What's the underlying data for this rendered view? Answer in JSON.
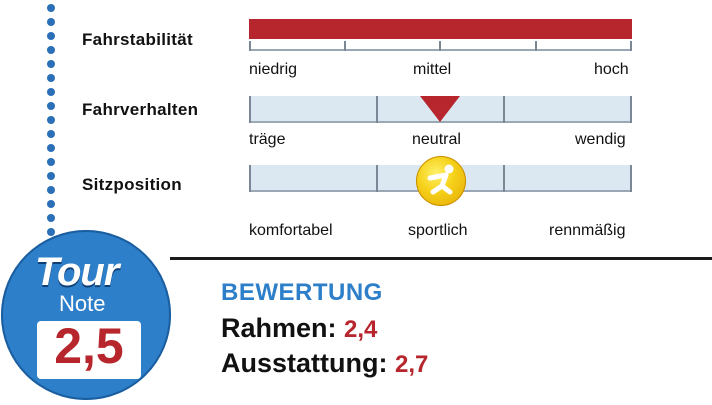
{
  "rows": [
    {
      "label": "Fahrstabilität",
      "scale_labels": [
        "niedrig",
        "mittel",
        "hoch"
      ],
      "indicator": "full-bar",
      "level": 1.0
    },
    {
      "label": "Fahrverhalten",
      "scale_labels": [
        "träge",
        "neutral",
        "wendig"
      ],
      "indicator": "triangle-marker",
      "level": 0.5
    },
    {
      "label": "Sitzposition",
      "scale_labels": [
        "komfortabel",
        "sportlich",
        "rennmäßig"
      ],
      "indicator": "cyclist-icon",
      "level": 0.5
    }
  ],
  "badge": {
    "brand": "Tour",
    "caption": "Note",
    "value": "2,5"
  },
  "rating": {
    "title": "BEWERTUNG",
    "items": [
      {
        "label": "Rahmen:",
        "value": "2,4"
      },
      {
        "label": "Ausstattung:",
        "value": "2,7"
      }
    ]
  },
  "colors": {
    "accent_red": "#b7262c",
    "brand_blue": "#2e7fc9",
    "scale_bg": "#dbe8f2",
    "badge_yellow": "#f6d21b"
  }
}
